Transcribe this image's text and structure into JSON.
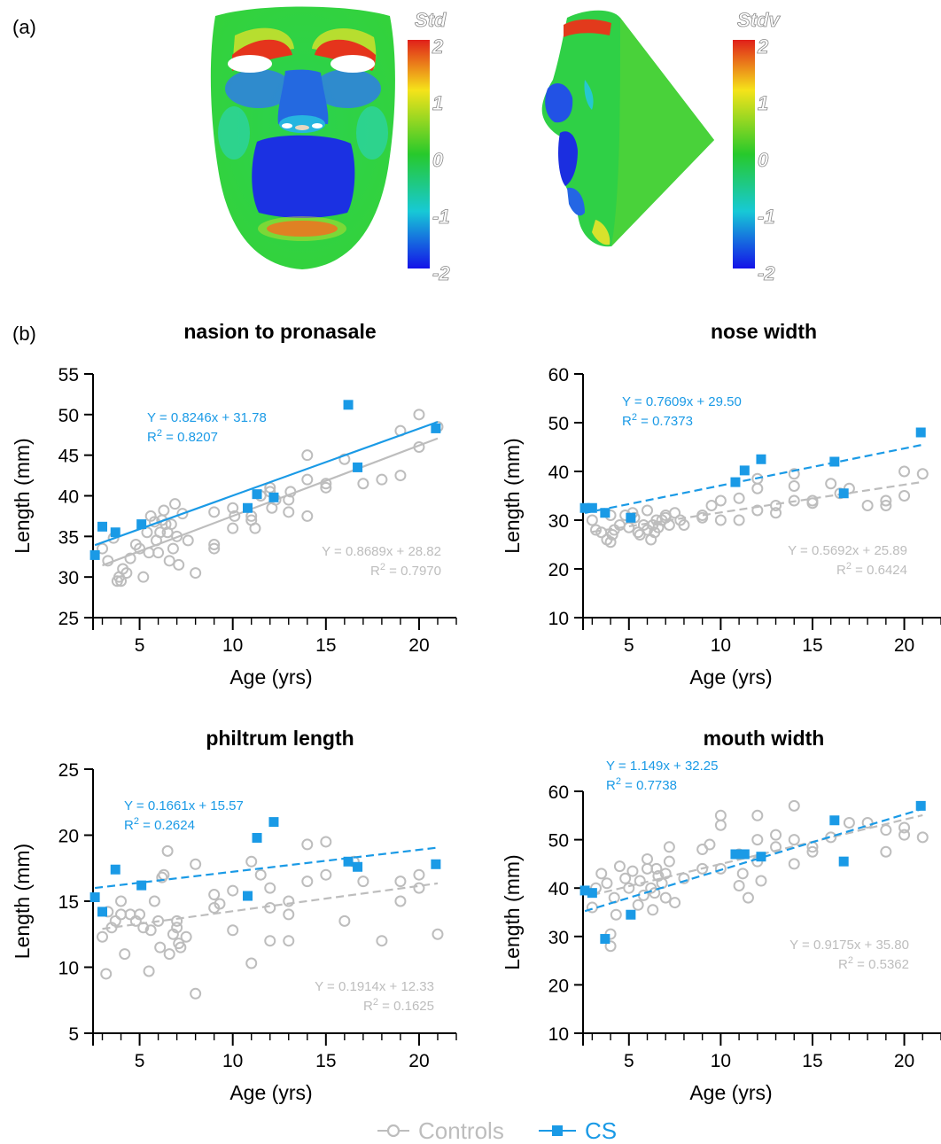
{
  "panel_a": {
    "label": "(a)",
    "front_colorbar": {
      "title": "Std",
      "ticks": [
        "2",
        "1",
        "0",
        "-1",
        "-2"
      ]
    },
    "side_colorbar": {
      "title": "Stdv",
      "ticks": [
        "2",
        "1",
        "0",
        "-1",
        "-2"
      ]
    }
  },
  "panel_b": {
    "label": "(b)"
  },
  "colors": {
    "controls": "#bdbdbd",
    "cs": "#1a9ae6"
  },
  "legend": {
    "controls": "Controls",
    "cs": "CS"
  },
  "chart_data": [
    {
      "type": "scatter",
      "title": "nasion to pronasale",
      "xlabel": "Age (yrs)",
      "ylabel": "Length (mm)",
      "xlim": [
        2.5,
        22
      ],
      "ylim": [
        25,
        55
      ],
      "xticks": [
        5,
        10,
        15,
        20
      ],
      "yticks": [
        25,
        30,
        35,
        40,
        45,
        50,
        55
      ],
      "series": [
        {
          "name": "Controls",
          "x": [
            3.0,
            3.3,
            3.6,
            3.9,
            4.0,
            4.1,
            4.3,
            4.5,
            4.8,
            5.0,
            5.2,
            5.4,
            5.6,
            5.8,
            5.9,
            6.0,
            6.1,
            6.2,
            6.3,
            6.4,
            6.5,
            6.6,
            6.8,
            6.9,
            7.0,
            7.1,
            7.3,
            7.6,
            8.0,
            9.0,
            9.0,
            10.0,
            10.0,
            10.1,
            11.0,
            11.2,
            11.5,
            12.0,
            12.0,
            12.1,
            12.3,
            13.0,
            13.0,
            13.1,
            14.0,
            14.0,
            14.0,
            15.0,
            15.0,
            16.0,
            17.0,
            18.0,
            19.0,
            19.0,
            20.0,
            20.0,
            21.0,
            3.8,
            5.5,
            6.7,
            9.0,
            11.0
          ],
          "y": [
            33.5,
            32.0,
            34.8,
            30.0,
            29.5,
            31.0,
            30.5,
            32.3,
            34.0,
            33.5,
            30.0,
            35.5,
            37.5,
            36.8,
            34.5,
            33.0,
            35.5,
            37.0,
            38.2,
            36.5,
            35.5,
            32.0,
            33.5,
            39.0,
            35.0,
            31.5,
            37.8,
            34.5,
            30.5,
            34.0,
            33.5,
            38.5,
            36.0,
            37.5,
            37.5,
            36.0,
            40.0,
            40.5,
            41.0,
            38.5,
            39.5,
            38.0,
            39.5,
            40.5,
            45.0,
            42.0,
            37.5,
            41.0,
            41.5,
            44.5,
            41.5,
            42.0,
            42.5,
            48.0,
            50.0,
            46.0,
            48.5,
            29.5,
            33.0,
            36.5,
            38.0,
            37.0
          ],
          "trend": {
            "slope": 0.8689,
            "intercept": 28.82,
            "r2": 0.797,
            "style": "solid"
          },
          "annotation": [
            "Y = 0.8689x + 28.82",
            "R2 = 0.7970"
          ]
        },
        {
          "name": "CS",
          "x": [
            2.6,
            3.0,
            3.7,
            5.1,
            10.8,
            11.3,
            12.2,
            16.2,
            16.7,
            20.9
          ],
          "y": [
            32.7,
            36.2,
            35.5,
            36.5,
            38.5,
            40.2,
            39.8,
            51.2,
            43.5,
            48.3
          ],
          "trend": {
            "slope": 0.8246,
            "intercept": 31.78,
            "r2": 0.8207,
            "style": "solid"
          },
          "annotation": [
            "Y = 0.8246x + 31.78",
            "R2 = 0.8207"
          ]
        }
      ]
    },
    {
      "type": "scatter",
      "title": "nose width",
      "xlabel": "Age (yrs)",
      "ylabel": "Length (mm)",
      "xlim": [
        2.5,
        22
      ],
      "ylim": [
        10,
        60
      ],
      "xticks": [
        5,
        10,
        15,
        20
      ],
      "yticks": [
        10,
        20,
        30,
        40,
        50,
        60
      ],
      "series": [
        {
          "name": "Controls",
          "x": [
            3.0,
            3.2,
            3.5,
            3.8,
            4.0,
            4.0,
            4.2,
            4.5,
            4.8,
            5.0,
            5.2,
            5.5,
            5.6,
            5.8,
            6.0,
            6.0,
            6.2,
            6.3,
            6.5,
            6.6,
            6.8,
            7.0,
            7.0,
            7.2,
            7.5,
            8.0,
            9.0,
            9.0,
            10.0,
            10.0,
            11.0,
            11.0,
            12.0,
            12.0,
            12.0,
            13.0,
            13.0,
            14.0,
            14.0,
            14.0,
            15.0,
            15.0,
            16.0,
            16.5,
            17.0,
            18.0,
            19.0,
            19.0,
            20.0,
            20.0,
            21.0,
            4.1,
            5.3,
            6.4,
            7.8,
            9.5
          ],
          "y": [
            30.0,
            28.0,
            27.5,
            26.0,
            25.5,
            31.0,
            28.0,
            29.0,
            31.0,
            28.5,
            31.5,
            27.5,
            27.0,
            29.0,
            28.0,
            32.0,
            26.0,
            29.0,
            30.0,
            28.5,
            30.0,
            31.0,
            30.5,
            29.0,
            31.5,
            29.0,
            31.0,
            30.5,
            30.0,
            34.0,
            30.0,
            34.5,
            32.0,
            36.5,
            38.5,
            31.5,
            33.0,
            34.0,
            37.0,
            39.5,
            34.0,
            33.5,
            37.5,
            35.5,
            36.5,
            33.0,
            34.0,
            33.0,
            40.0,
            35.0,
            39.5,
            27.0,
            30.5,
            27.5,
            30.0,
            33.0
          ],
          "trend": {
            "slope": 0.5692,
            "intercept": 25.89,
            "r2": 0.6424,
            "style": "dashed"
          },
          "annotation": [
            "Y = 0.5692x + 25.89",
            "R2 = 0.6424"
          ]
        },
        {
          "name": "CS",
          "x": [
            2.6,
            3.0,
            3.7,
            5.1,
            10.8,
            11.3,
            12.2,
            16.2,
            16.7,
            20.9
          ],
          "y": [
            32.5,
            32.5,
            31.5,
            30.5,
            37.8,
            40.2,
            42.5,
            42.0,
            35.5,
            48.0
          ],
          "trend": {
            "slope": 0.7609,
            "intercept": 29.5,
            "r2": 0.7373,
            "style": "dashed"
          },
          "annotation": [
            "Y = 0.7609x + 29.50",
            "R2 = 0.7373"
          ]
        }
      ]
    },
    {
      "type": "scatter",
      "title": "philtrum length",
      "xlabel": "Age (yrs)",
      "ylabel": "Length (mm)",
      "xlim": [
        2.5,
        22
      ],
      "ylim": [
        5,
        25
      ],
      "xticks": [
        5,
        10,
        15,
        20
      ],
      "yticks": [
        5,
        10,
        15,
        20,
        25
      ],
      "series": [
        {
          "name": "Controls",
          "x": [
            3.0,
            3.2,
            3.5,
            3.7,
            4.0,
            4.0,
            4.2,
            4.5,
            4.8,
            5.0,
            5.2,
            5.5,
            5.8,
            6.0,
            6.1,
            6.3,
            6.5,
            6.6,
            6.8,
            7.0,
            7.0,
            7.2,
            7.5,
            8.0,
            8.0,
            9.0,
            9.0,
            10.0,
            10.0,
            11.0,
            11.0,
            11.5,
            12.0,
            12.0,
            12.0,
            13.0,
            13.0,
            13.0,
            14.0,
            14.0,
            15.0,
            15.0,
            16.0,
            16.5,
            17.0,
            18.0,
            19.0,
            19.0,
            20.0,
            20.0,
            21.0,
            3.3,
            5.6,
            6.2,
            7.1,
            9.3
          ],
          "y": [
            12.3,
            9.5,
            13.0,
            13.5,
            14.0,
            15.0,
            11.0,
            14.0,
            13.5,
            14.0,
            13.0,
            9.7,
            15.0,
            13.5,
            11.5,
            17.0,
            18.8,
            11.0,
            12.5,
            13.5,
            13.0,
            11.5,
            12.3,
            8.0,
            17.8,
            15.5,
            14.5,
            15.8,
            12.8,
            18.0,
            10.3,
            17.0,
            14.5,
            12.0,
            16.0,
            15.0,
            14.0,
            12.0,
            19.3,
            16.5,
            17.0,
            19.5,
            13.5,
            18.0,
            16.5,
            12.0,
            16.5,
            15.0,
            17.0,
            16.0,
            12.5,
            14.2,
            12.8,
            16.8,
            11.8,
            14.8
          ],
          "trend": {
            "slope": 0.1914,
            "intercept": 12.33,
            "r2": 0.1625,
            "style": "dashed"
          },
          "annotation": [
            "Y = 0.1914x + 12.33",
            "R2 = 0.1625"
          ]
        },
        {
          "name": "CS",
          "x": [
            2.6,
            3.0,
            3.7,
            5.1,
            10.8,
            11.3,
            12.2,
            16.2,
            16.7,
            20.9
          ],
          "y": [
            15.3,
            14.2,
            17.4,
            16.2,
            15.4,
            19.8,
            21.0,
            18.0,
            17.6,
            17.8
          ],
          "trend": {
            "slope": 0.1661,
            "intercept": 15.57,
            "r2": 0.2624,
            "style": "dashed"
          },
          "annotation": [
            "Y = 0.1661x + 15.57",
            "R2 = 0.2624"
          ]
        }
      ]
    },
    {
      "type": "scatter",
      "title": "mouth width",
      "xlabel": "Age (yrs)",
      "ylabel": "Length (mm)",
      "xlim": [
        2.5,
        22
      ],
      "ylim": [
        10,
        60
      ],
      "xticks": [
        5,
        10,
        15,
        20
      ],
      "yticks": [
        10,
        20,
        30,
        40,
        50,
        60
      ],
      "series": [
        {
          "name": "Controls",
          "x": [
            3.0,
            3.2,
            3.5,
            3.8,
            4.0,
            4.0,
            4.2,
            4.5,
            4.8,
            5.0,
            5.2,
            5.5,
            5.8,
            6.0,
            6.0,
            6.2,
            6.3,
            6.5,
            6.6,
            6.8,
            7.0,
            7.0,
            7.2,
            7.5,
            8.0,
            9.0,
            9.0,
            10.0,
            10.0,
            10.0,
            11.0,
            11.0,
            11.5,
            12.0,
            12.0,
            12.0,
            13.0,
            13.0,
            14.0,
            14.0,
            14.0,
            15.0,
            15.0,
            16.0,
            17.0,
            18.0,
            19.0,
            19.0,
            20.0,
            20.0,
            21.0,
            4.3,
            5.6,
            6.4,
            7.2,
            9.4,
            11.2,
            12.2
          ],
          "y": [
            36.0,
            40.0,
            43.0,
            41.0,
            30.5,
            28.0,
            38.0,
            44.5,
            42.0,
            40.0,
            43.5,
            36.5,
            38.5,
            44.0,
            46.0,
            40.0,
            35.5,
            44.0,
            42.5,
            41.0,
            38.0,
            43.0,
            48.5,
            37.0,
            42.0,
            44.0,
            48.0,
            55.0,
            53.0,
            44.0,
            47.0,
            40.5,
            38.0,
            55.0,
            50.0,
            45.5,
            51.0,
            48.5,
            57.0,
            50.0,
            45.0,
            47.5,
            48.5,
            50.5,
            53.5,
            53.5,
            52.0,
            47.5,
            52.5,
            51.0,
            50.5,
            34.5,
            41.5,
            39.0,
            45.5,
            49.0,
            43.0,
            41.5
          ],
          "trend": {
            "slope": 0.9175,
            "intercept": 35.8,
            "r2": 0.5362,
            "style": "dashed"
          },
          "annotation": [
            "Y = 0.9175x + 35.80",
            "R2 = 0.5362"
          ]
        },
        {
          "name": "CS",
          "x": [
            2.6,
            3.0,
            3.7,
            5.1,
            10.8,
            11.3,
            12.2,
            16.2,
            16.7,
            20.9
          ],
          "y": [
            39.5,
            39.0,
            29.5,
            34.5,
            47.0,
            47.0,
            46.5,
            54.0,
            45.5,
            57.0
          ],
          "trend": {
            "slope": 1.149,
            "intercept": 32.25,
            "r2": 0.7738,
            "style": "dashed"
          },
          "annotation": [
            "Y = 1.149x + 32.25",
            "R2 = 0.7738"
          ]
        }
      ]
    }
  ]
}
